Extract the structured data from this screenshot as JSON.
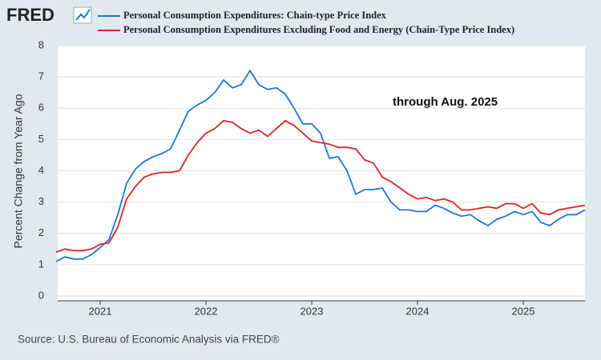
{
  "chart_data": {
    "type": "line",
    "logo": "FRED",
    "ylabel": "Percent Change from Year Ago",
    "annotation": "through Aug. 2025",
    "source": "Source: U.S. Bureau of Economic Analysis via FRED®",
    "categories": [
      null,
      null,
      null,
      null,
      null,
      "2021",
      null,
      null,
      null,
      null,
      null,
      null,
      null,
      null,
      null,
      null,
      null,
      "2022",
      null,
      null,
      null,
      null,
      null,
      null,
      null,
      null,
      null,
      null,
      null,
      "2023",
      null,
      null,
      null,
      null,
      null,
      null,
      null,
      null,
      null,
      null,
      null,
      "2024",
      null,
      null,
      null,
      null,
      null,
      null,
      null,
      null,
      null,
      null,
      null,
      "2025",
      null,
      null,
      null,
      null,
      null,
      null,
      null
    ],
    "series": [
      {
        "name": "Personal Consumption Expenditures: Chain-type Price Index",
        "color": "#1f77d4",
        "values": [
          1.1,
          1.25,
          1.18,
          1.18,
          1.32,
          1.55,
          1.8,
          2.6,
          3.6,
          4.05,
          4.3,
          4.45,
          4.55,
          4.7,
          5.3,
          5.9,
          6.1,
          6.25,
          6.5,
          6.9,
          6.65,
          6.75,
          7.2,
          6.75,
          6.6,
          6.65,
          6.45,
          6.0,
          5.5,
          5.5,
          5.2,
          4.4,
          4.45,
          4.0,
          3.25,
          3.4,
          3.4,
          3.45,
          3.0,
          2.75,
          2.75,
          2.7,
          2.7,
          2.9,
          2.8,
          2.65,
          2.55,
          2.6,
          2.4,
          2.25,
          2.45,
          2.55,
          2.7,
          2.6,
          2.7,
          2.35,
          2.25,
          2.45,
          2.6,
          2.6,
          2.75
        ]
      },
      {
        "name": "Personal Consumption Expenditures Excluding Food and Energy (Chain-Type Price Index)",
        "color": "#d62728",
        "values": [
          1.4,
          1.5,
          1.45,
          1.45,
          1.5,
          1.65,
          1.7,
          2.2,
          3.1,
          3.5,
          3.8,
          3.9,
          3.95,
          3.95,
          4.0,
          4.5,
          4.9,
          5.2,
          5.35,
          5.6,
          5.55,
          5.35,
          5.2,
          5.3,
          5.1,
          5.35,
          5.6,
          5.45,
          5.2,
          4.95,
          4.9,
          4.85,
          4.75,
          4.75,
          4.7,
          4.35,
          4.25,
          3.8,
          3.65,
          3.45,
          3.25,
          3.1,
          3.15,
          3.05,
          3.1,
          3.0,
          2.75,
          2.75,
          2.8,
          2.85,
          2.8,
          2.95,
          2.95,
          2.8,
          2.95,
          2.65,
          2.6,
          2.75,
          2.8,
          2.85,
          2.9
        ]
      }
    ],
    "ylim": [
      0,
      8
    ],
    "yticks": [
      0,
      1,
      2,
      3,
      4,
      5,
      6,
      7,
      8
    ],
    "grid": true
  }
}
